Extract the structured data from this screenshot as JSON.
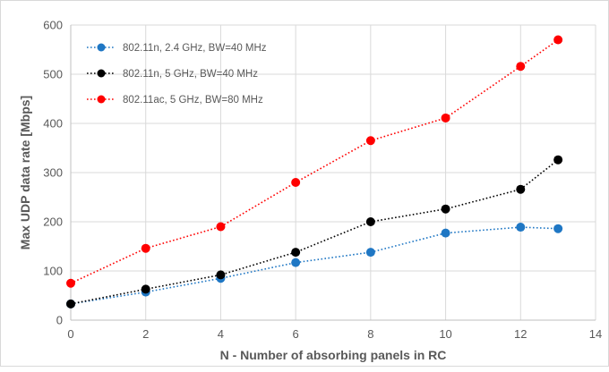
{
  "chart_data": {
    "type": "line",
    "title": "",
    "xlabel": "N - Number of absorbing panels in RC",
    "ylabel": "Max UDP data rate [Mbps]",
    "xlim": [
      0,
      14
    ],
    "ylim": [
      0,
      600
    ],
    "xticks": [
      0,
      2,
      4,
      6,
      8,
      10,
      12,
      14
    ],
    "yticks": [
      0,
      100,
      200,
      300,
      400,
      500,
      600
    ],
    "grid": true,
    "legend_position": "top-left",
    "series": [
      {
        "name": "802.11n, 2.4 GHz, BW=40 MHz",
        "color": "#1f77c4",
        "line_style": "dotted",
        "x": [
          0,
          2,
          4,
          6,
          8,
          10,
          12,
          13
        ],
        "y": [
          33,
          57,
          85,
          117,
          138,
          177,
          189,
          186
        ]
      },
      {
        "name": "802.11n, 5 GHz,  BW=40 MHz",
        "color": "#000000",
        "line_style": "dotted",
        "x": [
          0,
          2,
          4,
          6,
          8,
          10,
          12,
          13
        ],
        "y": [
          33,
          63,
          92,
          138,
          200,
          226,
          266,
          326
        ]
      },
      {
        "name": "802.11ac, 5 GHz, BW=80 MHz",
        "color": "#ff0000",
        "line_style": "dotted",
        "x": [
          0,
          2,
          4,
          6,
          8,
          10,
          12,
          13
        ],
        "y": [
          75,
          146,
          190,
          280,
          365,
          411,
          516,
          570
        ]
      }
    ]
  }
}
